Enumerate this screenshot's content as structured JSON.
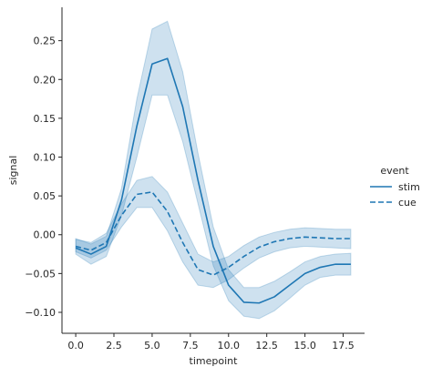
{
  "chart_data": {
    "type": "line",
    "xlabel": "timepoint",
    "ylabel": "signal",
    "xlim": [
      -0.9,
      18.9
    ],
    "ylim": [
      -0.127,
      0.293
    ],
    "xticks": [
      0.0,
      2.5,
      5.0,
      7.5,
      10.0,
      12.5,
      15.0,
      17.5
    ],
    "xtick_labels": [
      "0.0",
      "2.5",
      "5.0",
      "7.5",
      "10.0",
      "12.5",
      "15.0",
      "17.5"
    ],
    "yticks": [
      -0.1,
      -0.05,
      0.0,
      0.05,
      0.1,
      0.15,
      0.2,
      0.25
    ],
    "ytick_labels": [
      "−0.10",
      "−0.05",
      "0.00",
      "0.05",
      "0.10",
      "0.15",
      "0.20",
      "0.25"
    ],
    "grid": false,
    "legend": {
      "title": "event",
      "placement": "outside-right"
    },
    "x": [
      0,
      1,
      2,
      3,
      4,
      5,
      6,
      7,
      8,
      9,
      10,
      11,
      12,
      13,
      14,
      15,
      16,
      17,
      18
    ],
    "series": [
      {
        "name": "stim",
        "linestyle": "solid",
        "color": "#1f77b4",
        "values": [
          -0.017,
          -0.025,
          -0.015,
          0.045,
          0.14,
          0.22,
          0.227,
          0.165,
          0.07,
          -0.015,
          -0.065,
          -0.087,
          -0.088,
          -0.08,
          -0.065,
          -0.05,
          -0.042,
          -0.038,
          -0.038
        ],
        "ci_lower": [
          -0.025,
          -0.038,
          -0.028,
          0.025,
          0.1,
          0.18,
          0.18,
          0.12,
          0.04,
          -0.04,
          -0.085,
          -0.105,
          -0.108,
          -0.098,
          -0.082,
          -0.065,
          -0.055,
          -0.052,
          -0.052
        ],
        "ci_upper": [
          -0.005,
          -0.012,
          -0.002,
          0.06,
          0.175,
          0.265,
          0.275,
          0.21,
          0.105,
          0.01,
          -0.045,
          -0.068,
          -0.068,
          -0.06,
          -0.048,
          -0.035,
          -0.028,
          -0.025,
          -0.024
        ]
      },
      {
        "name": "cue",
        "linestyle": "dashed",
        "color": "#1f77b4",
        "values": [
          -0.015,
          -0.02,
          -0.01,
          0.025,
          0.052,
          0.055,
          0.03,
          -0.01,
          -0.045,
          -0.052,
          -0.042,
          -0.028,
          -0.016,
          -0.009,
          -0.005,
          -0.003,
          -0.004,
          -0.005,
          -0.005
        ],
        "ci_lower": [
          -0.022,
          -0.03,
          -0.02,
          0.01,
          0.035,
          0.035,
          0.005,
          -0.035,
          -0.065,
          -0.068,
          -0.058,
          -0.043,
          -0.03,
          -0.022,
          -0.017,
          -0.015,
          -0.016,
          -0.017,
          -0.018
        ],
        "ci_upper": [
          -0.006,
          -0.01,
          0.002,
          0.04,
          0.07,
          0.075,
          0.055,
          0.015,
          -0.025,
          -0.035,
          -0.028,
          -0.014,
          -0.003,
          0.003,
          0.007,
          0.009,
          0.008,
          0.007,
          0.007
        ]
      }
    ]
  }
}
